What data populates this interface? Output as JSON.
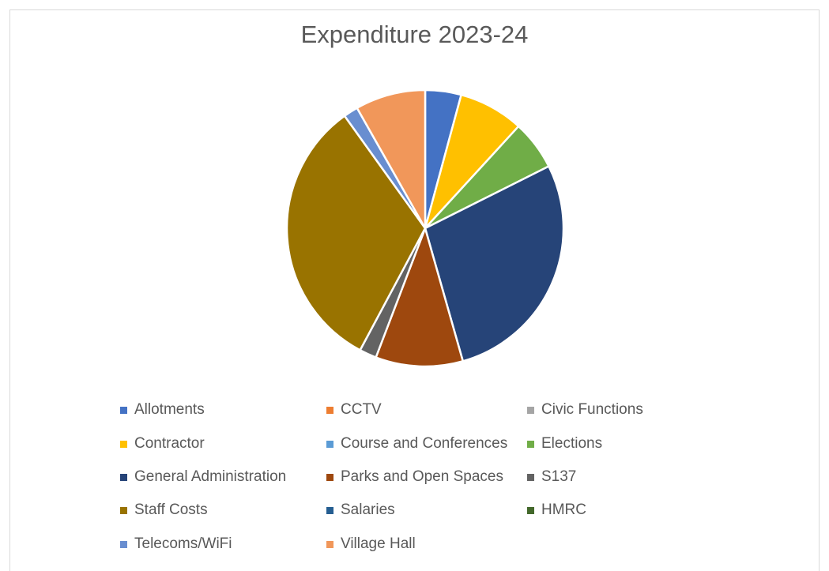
{
  "chart_data": {
    "type": "pie",
    "title": "Expenditure 2023-24",
    "legend_position": "bottom",
    "slices": [
      {
        "label": "Allotments",
        "value": 4.2,
        "color": "#4472c4"
      },
      {
        "label": "CCTV",
        "value": 0,
        "color": "#ed7d31"
      },
      {
        "label": "Civic Functions",
        "value": 0,
        "color": "#a5a5a5"
      },
      {
        "label": "Contractor",
        "value": 7.6,
        "color": "#ffc000"
      },
      {
        "label": "Course and Conferences",
        "value": 0,
        "color": "#5b9bd5"
      },
      {
        "label": "Elections",
        "value": 5.8,
        "color": "#70ad47"
      },
      {
        "label": "General Administration",
        "value": 28.0,
        "color": "#264478"
      },
      {
        "label": "Parks and Open Spaces",
        "value": 10.2,
        "color": "#9e480e"
      },
      {
        "label": "S137",
        "value": 2.0,
        "color": "#636363"
      },
      {
        "label": "Staff Costs",
        "value": 32.3,
        "color": "#997300"
      },
      {
        "label": "Salaries",
        "value": 0,
        "color": "#255e91"
      },
      {
        "label": "HMRC",
        "value": 0,
        "color": "#43682b"
      },
      {
        "label": "Telecoms/WiFi",
        "value": 1.7,
        "color": "#698ed0"
      },
      {
        "label": "Village Hall",
        "value": 8.2,
        "color": "#f1975a"
      }
    ]
  }
}
